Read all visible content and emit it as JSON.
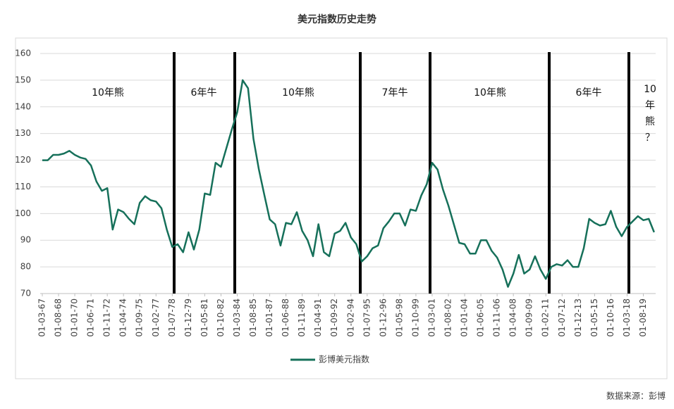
{
  "chart_data": {
    "type": "line",
    "title": "美元指数历史走势",
    "source": "数据来源：彭博",
    "categories": [
      "01-03-67",
      null,
      null,
      "01-08-68",
      null,
      null,
      "01-01-70",
      null,
      null,
      "01-06-71",
      null,
      null,
      "01-11-72",
      null,
      null,
      "01-04-74",
      null,
      null,
      "01-09-75",
      null,
      null,
      "01-02-77",
      null,
      null,
      "01-07-78",
      null,
      null,
      "01-12-79",
      null,
      null,
      "01-05-81",
      null,
      null,
      "01-10-82",
      null,
      null,
      "01-03-84",
      null,
      null,
      "01-08-85",
      null,
      null,
      "01-01-87",
      null,
      null,
      "01-06-88",
      null,
      null,
      "01-11-89",
      null,
      null,
      "01-04-91",
      null,
      null,
      "01-09-92",
      null,
      null,
      "01-02-94",
      null,
      null,
      "01-07-95",
      null,
      null,
      "01-12-96",
      null,
      null,
      "01-05-98",
      null,
      null,
      "01-10-99",
      null,
      null,
      "01-03-01",
      null,
      null,
      "01-08-02",
      null,
      null,
      "01-01-04",
      null,
      null,
      "01-06-05",
      null,
      null,
      "01-11-06",
      null,
      null,
      "01-04-08",
      null,
      null,
      "01-09-09",
      null,
      null,
      "01-02-11",
      null,
      null,
      "01-07-12",
      null,
      null,
      "01-12-13",
      null,
      null,
      "01-05-15",
      null,
      null,
      "01-10-16",
      null,
      null,
      "01-03-18",
      null,
      null,
      "01-08-19",
      null,
      null
    ],
    "series": [
      {
        "name": "彭博美元指数",
        "color": "#16705a",
        "values": [
          120,
          120,
          122,
          122,
          122.5,
          123.5,
          122,
          121,
          120.5,
          118,
          112,
          108.5,
          109.5,
          94,
          101.5,
          100.5,
          98,
          96,
          104,
          106.5,
          105,
          104.5,
          102,
          94,
          87.5,
          88.5,
          85.5,
          93,
          86.5,
          94,
          107.5,
          107,
          119,
          117.5,
          124.5,
          131.5,
          138,
          150,
          147,
          128,
          116.5,
          107,
          97.8,
          96,
          88,
          96.5,
          96,
          100.5,
          93.5,
          90,
          84,
          96,
          85.5,
          84,
          92.5,
          93.5,
          96.5,
          91,
          88.5,
          82,
          84,
          87,
          88,
          94.5,
          97,
          100,
          100,
          95.5,
          101.5,
          101,
          106.8,
          111,
          119,
          116.5,
          109,
          103,
          96,
          89,
          88.5,
          85,
          85,
          90,
          90,
          86,
          83.5,
          79,
          72.5,
          77.5,
          84.5,
          77.5,
          79,
          84,
          79,
          75.5,
          80,
          81,
          80.5,
          82.5,
          80,
          80,
          87,
          98,
          96.5,
          95.5,
          96,
          101,
          95,
          91.5,
          95,
          97,
          99,
          97.5,
          98,
          93
        ]
      }
    ],
    "ylim": [
      70,
      160
    ],
    "yticks": [
      70,
      80,
      90,
      100,
      110,
      120,
      130,
      140,
      150,
      160
    ],
    "grid": true,
    "annotations": [
      {
        "text": "10年熊"
      },
      {
        "text": "6年牛"
      },
      {
        "text": "10年熊"
      },
      {
        "text": "7年牛"
      },
      {
        "text": "10年熊"
      },
      {
        "text": "6年牛"
      },
      {
        "lines": [
          "10",
          "年",
          "熊",
          "？"
        ]
      }
    ]
  }
}
